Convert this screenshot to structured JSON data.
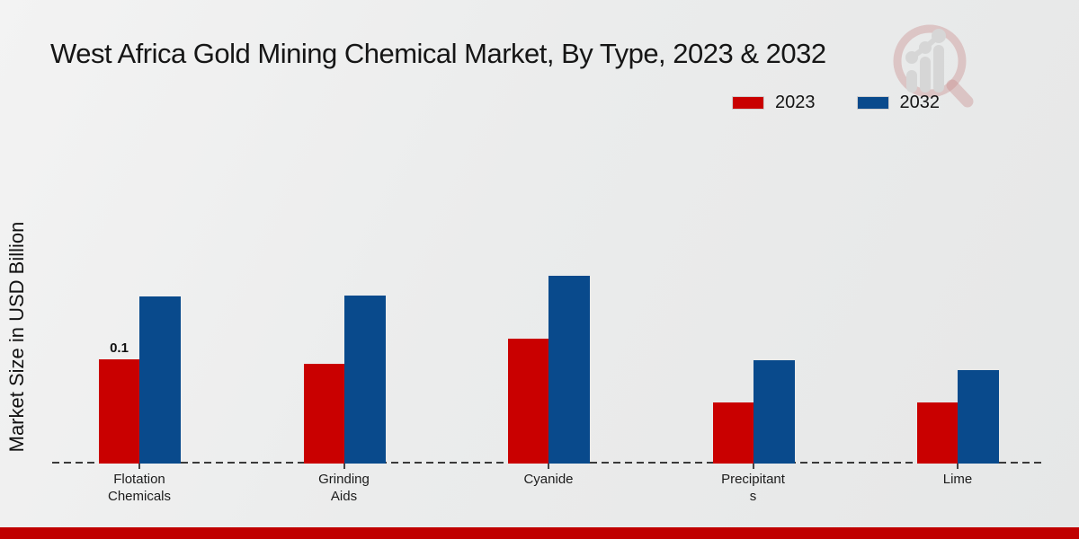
{
  "chart_data": {
    "type": "bar",
    "title": "West Africa Gold Mining Chemical Market, By Type, 2023 & 2032",
    "xlabel": "",
    "ylabel": "Market Size in USD Billion",
    "unit": "USD Billion",
    "categories": [
      "Flotation Chemicals",
      "Grinding Aids",
      "Cyanide",
      "Precipitants",
      "Lime"
    ],
    "category_label_lines": [
      [
        "Flotation",
        "Chemicals"
      ],
      [
        "Grinding",
        "Aids"
      ],
      [
        "Cyanide"
      ],
      [
        "Precipitant",
        "s"
      ],
      [
        "Lime"
      ]
    ],
    "series": [
      {
        "name": "2023",
        "color": "#c90000",
        "values": [
          0.1,
          0.096,
          0.12,
          0.059,
          0.059
        ]
      },
      {
        "name": "2032",
        "color": "#094a8c",
        "values": [
          0.16,
          0.161,
          0.18,
          0.099,
          0.09
        ]
      }
    ],
    "bar_labels": [
      {
        "series_index": 0,
        "category_index": 0,
        "text": "0.1"
      }
    ],
    "ylim": [
      0,
      0.25
    ],
    "grid": false,
    "baseline_style": "dashed",
    "legend_position": "top-right"
  },
  "footer": {
    "band_color": "#c00000"
  },
  "watermark": {
    "icon": "magnifier-bar-chart-logo",
    "circle_color": "#b04343",
    "bars_color": "#c7c7c7"
  }
}
